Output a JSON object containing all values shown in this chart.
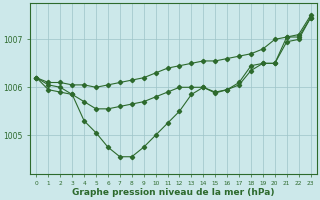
{
  "x": [
    0,
    1,
    2,
    3,
    4,
    5,
    6,
    7,
    8,
    9,
    10,
    11,
    12,
    13,
    14,
    15,
    16,
    17,
    18,
    19,
    20,
    21,
    22,
    23
  ],
  "line_top": [
    1006.2,
    1006.1,
    1006.1,
    1006.05,
    1006.05,
    1006.0,
    1006.05,
    1006.1,
    1006.15,
    1006.2,
    1006.3,
    1006.4,
    1006.45,
    1006.5,
    1006.55,
    1006.55,
    1006.6,
    1006.65,
    1006.7,
    1006.8,
    1007.0,
    1007.05,
    1007.1,
    1007.5
  ],
  "line_mid": [
    1006.2,
    1006.05,
    1006.0,
    1005.85,
    1005.7,
    1005.55,
    1005.55,
    1005.6,
    1005.65,
    1005.7,
    1005.8,
    1005.9,
    1006.0,
    1006.0,
    1006.0,
    1005.9,
    1005.95,
    1006.05,
    1006.35,
    1006.5,
    1006.5,
    1006.95,
    1007.0,
    1007.45
  ],
  "line_bot": [
    1006.2,
    1005.95,
    1005.9,
    1005.85,
    1005.3,
    1005.05,
    1004.75,
    1004.55,
    1004.55,
    1004.75,
    1005.0,
    1005.25,
    1005.5,
    1005.85,
    1006.0,
    1005.88,
    1005.95,
    1006.1,
    1006.45,
    1006.5,
    1006.5,
    1007.05,
    1007.05,
    1007.45
  ],
  "bg_color": "#cce8ea",
  "line_color": "#2d6a2d",
  "grid_color": "#9dc4c8",
  "xlabel": "Graphe pression niveau de la mer (hPa)",
  "yticks": [
    1005,
    1006,
    1007
  ],
  "xlim": [
    -0.5,
    23.5
  ],
  "ylim": [
    1004.2,
    1007.75
  ]
}
